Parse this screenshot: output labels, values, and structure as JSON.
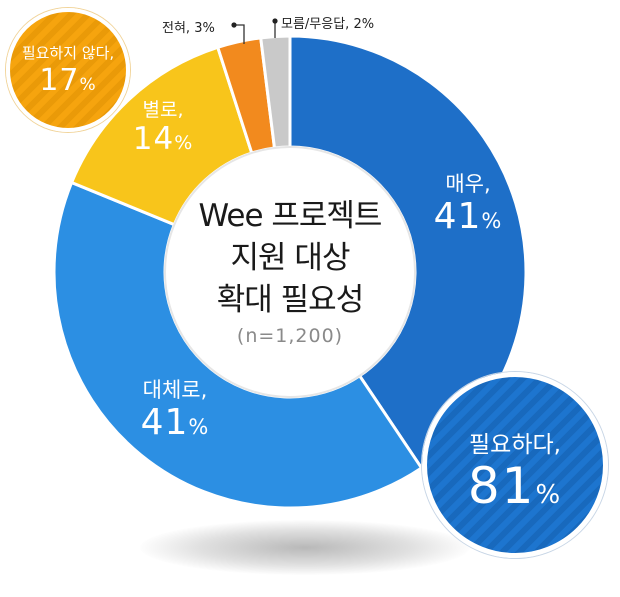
{
  "chart_data": {
    "type": "pie",
    "subtype": "donut",
    "title_lines": [
      "Wee 프로젝트",
      "지원 대상",
      "확대 필요성"
    ],
    "sample_note": "(n=1,200)",
    "slices": [
      {
        "key": "very",
        "label": "매우,",
        "value": 41,
        "pct_text": "41",
        "color": "#1e6fc8"
      },
      {
        "key": "mostly",
        "label": "대체로,",
        "value": 41,
        "pct_text": "41",
        "color": "#2c8fe3"
      },
      {
        "key": "notreally",
        "label": "별로,",
        "value": 14,
        "pct_text": "14",
        "color": "#f8c51b"
      },
      {
        "key": "never",
        "label": "전혀,",
        "value": 3,
        "pct_text": "3%",
        "color": "#f28a1e"
      },
      {
        "key": "dk",
        "label": "모름/무응답,",
        "value": 2,
        "pct_text": "2%",
        "color": "#c9c9c9"
      }
    ],
    "summary": {
      "need": {
        "label": "필요하다,",
        "value": 81,
        "pct_text": "81",
        "color": "#1d75cf"
      },
      "not_need": {
        "label": "필요하지 않다,",
        "value": 17,
        "pct_text": "17",
        "color": "#f6a40e"
      }
    },
    "percent_sign": "%"
  }
}
